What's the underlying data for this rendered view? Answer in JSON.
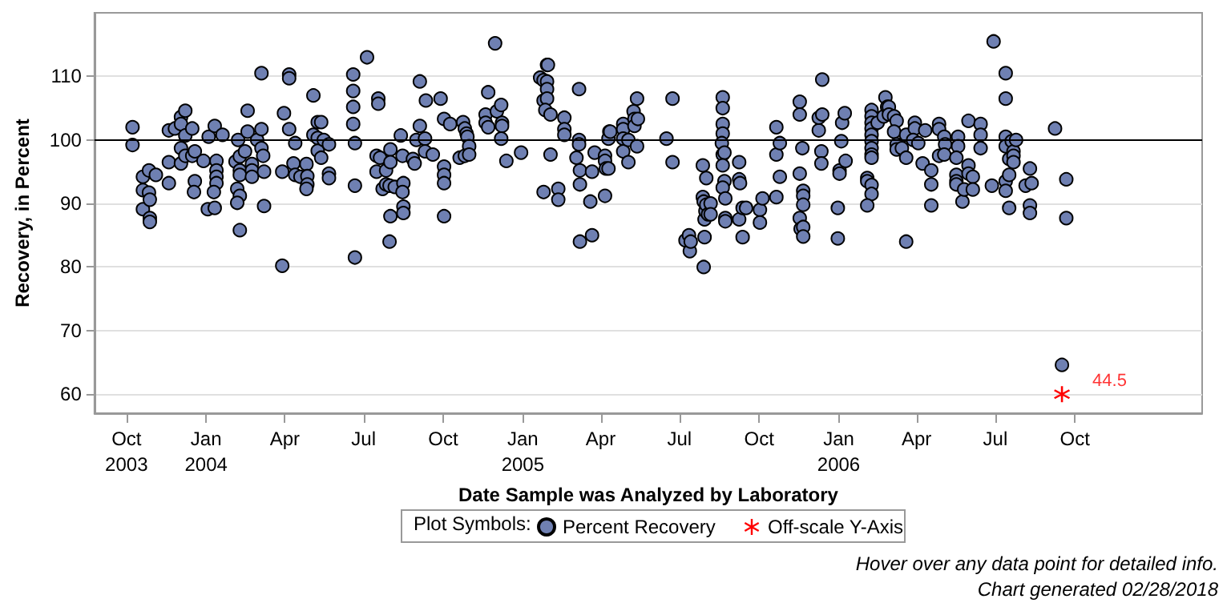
{
  "chart_data": {
    "type": "scatter",
    "xlabel": "Date Sample was Analyzed by Laboratory",
    "ylabel": "Recovery, in Percent",
    "legend_title": "Plot Symbols:",
    "legend": "bottom",
    "grid": "y",
    "marker": "circle",
    "xlim": [
      "2003-08-25",
      "2007-02-25"
    ],
    "xticks": [
      {
        "value": "2003-10-01",
        "label": "Oct\n2003"
      },
      {
        "value": "2004-01-01",
        "label": "Jan\n2004"
      },
      {
        "value": "2004-04-01",
        "label": "Apr"
      },
      {
        "value": "2004-07-01",
        "label": "Jul"
      },
      {
        "value": "2004-10-01",
        "label": "Oct"
      },
      {
        "value": "2005-01-01",
        "label": "Jan\n2005"
      },
      {
        "value": "2005-04-01",
        "label": "Apr"
      },
      {
        "value": "2005-07-01",
        "label": "Jul"
      },
      {
        "value": "2005-10-01",
        "label": "Oct"
      },
      {
        "value": "2006-01-01",
        "label": "Jan\n2006"
      },
      {
        "value": "2006-04-01",
        "label": "Apr"
      },
      {
        "value": "2006-07-01",
        "label": "Jul"
      },
      {
        "value": "2006-10-01",
        "label": "Oct"
      }
    ],
    "ylim": [
      57,
      120
    ],
    "yticks": [
      60,
      70,
      80,
      90,
      100,
      110
    ],
    "ref_lines": [
      {
        "axis": "y",
        "value": 100,
        "color": "#000000",
        "line_style": "solid"
      }
    ],
    "annotations": [
      {
        "text": "44.5",
        "x": "2006-09-16",
        "y": 60
      },
      "Hover over any data point for detailed info.",
      "Chart generated 02/28/2018"
    ],
    "series": [
      {
        "name": "Percent Recovery",
        "color": "#6f80b2",
        "x": [
          "2003-10-08",
          "2003-10-08",
          "2003-10-20",
          "2003-10-20",
          "2003-10-20",
          "2003-10-27",
          "2003-10-27",
          "2003-10-28",
          "2003-10-28",
          "2003-10-28",
          "2003-11-04",
          "2003-11-19",
          "2003-11-19",
          "2003-11-19",
          "2003-11-26",
          "2003-12-03",
          "2003-12-03",
          "2003-12-03",
          "2003-12-03",
          "2003-12-08",
          "2003-12-08",
          "2003-12-08",
          "2003-12-16",
          "2003-12-16",
          "2003-12-19",
          "2003-12-19",
          "2003-12-18",
          "2003-12-29",
          "2004-01-04",
          "2004-01-11",
          "2004-01-13",
          "2004-01-13",
          "2004-01-13",
          "2004-01-13",
          "2004-01-10",
          "2004-01-03",
          "2004-01-11",
          "2004-01-20",
          "2004-02-04",
          "2004-02-07",
          "2004-02-09",
          "2004-02-09",
          "2004-02-09",
          "2004-02-06",
          "2004-02-09",
          "2004-02-06",
          "2004-02-09",
          "2004-02-15",
          "2004-02-18",
          "2004-02-18",
          "2004-02-23",
          "2004-02-23",
          "2004-02-23",
          "2004-02-29",
          "2004-03-05",
          "2004-03-05",
          "2004-03-07",
          "2004-03-05",
          "2004-03-08",
          "2004-03-08",
          "2004-03-29",
          "2004-03-29",
          "2004-03-31",
          "2004-04-06",
          "2004-04-06",
          "2004-04-06",
          "2004-04-11",
          "2004-04-13",
          "2004-04-13",
          "2004-04-19",
          "2004-04-26",
          "2004-04-27",
          "2004-04-27",
          "2004-04-26",
          "2004-05-04",
          "2004-05-04",
          "2004-05-09",
          "2004-05-13",
          "2004-05-09",
          "2004-05-09",
          "2004-05-13",
          "2004-05-16",
          "2004-05-22",
          "2004-05-22",
          "2004-05-22",
          "2004-06-19",
          "2004-06-19",
          "2004-06-19",
          "2004-06-19",
          "2004-06-21",
          "2004-06-21",
          "2004-06-21",
          "2004-07-05",
          "2004-07-18",
          "2004-07-18",
          "2004-07-16",
          "2004-07-20",
          "2004-07-16",
          "2004-07-23",
          "2004-07-27",
          "2004-07-27",
          "2004-08-01",
          "2004-08-01",
          "2004-07-31",
          "2004-08-06",
          "2004-08-01",
          "2004-07-31",
          "2004-08-13",
          "2004-08-15",
          "2004-08-16",
          "2004-08-15",
          "2004-08-16",
          "2004-08-16",
          "2004-08-27",
          "2004-08-29",
          "2004-08-31",
          "2004-09-04",
          "2004-09-04",
          "2004-09-10",
          "2004-09-11",
          "2004-09-10",
          "2004-09-19",
          "2004-09-28",
          "2004-10-02",
          "2004-10-02",
          "2004-10-02",
          "2004-10-02",
          "2004-10-02",
          "2004-10-09",
          "2004-10-24",
          "2004-10-26",
          "2004-10-28",
          "2004-10-29",
          "2004-10-31",
          "2004-10-20",
          "2004-10-26",
          "2004-10-31",
          "2004-11-30",
          "2004-11-22",
          "2004-11-19",
          "2004-11-19",
          "2004-11-22",
          "2004-12-02",
          "2004-12-07",
          "2004-12-08",
          "2004-12-08",
          "2004-12-07",
          "2004-12-13",
          "2004-12-30",
          "2005-01-21",
          "2005-01-29",
          "2005-01-30",
          "2005-01-25",
          "2005-01-29",
          "2005-01-29",
          "2005-01-25",
          "2005-01-29",
          "2005-01-27",
          "2005-02-02",
          "2005-01-25",
          "2005-02-11",
          "2005-02-11",
          "2005-02-02",
          "2005-02-18",
          "2005-02-18",
          "2005-02-18",
          "2005-03-07",
          "2005-03-07",
          "2005-03-07",
          "2005-03-04",
          "2005-03-08",
          "2005-03-08",
          "2005-03-08",
          "2005-03-20",
          "2005-03-22",
          "2005-03-22",
          "2005-03-25",
          "2005-04-06",
          "2005-04-06",
          "2005-04-07",
          "2005-04-10",
          "2005-04-06",
          "2005-04-11",
          "2005-04-10",
          "2005-04-12",
          "2005-04-27",
          "2005-04-27",
          "2005-04-27",
          "2005-04-27",
          "2005-05-03",
          "2005-05-03",
          "2005-05-09",
          "2005-05-10",
          "2005-05-10",
          "2005-05-13",
          "2005-05-14",
          "2005-05-13",
          "2005-06-16",
          "2005-06-23",
          "2005-06-23",
          "2005-07-08",
          "2005-07-12",
          "2005-07-13",
          "2005-07-14",
          "2005-07-29",
          "2005-07-30",
          "2005-07-28",
          "2005-08-01",
          "2005-07-28",
          "2005-07-29",
          "2005-07-30",
          "2005-07-31",
          "2005-08-01",
          "2005-08-03",
          "2005-08-06",
          "2005-08-06",
          "2005-08-20",
          "2005-08-20",
          "2005-08-20",
          "2005-08-20",
          "2005-08-19",
          "2005-08-20",
          "2005-08-22",
          "2005-08-20",
          "2005-08-22",
          "2005-08-20",
          "2005-08-23",
          "2005-08-23",
          "2005-08-23",
          "2005-09-08",
          "2005-09-08",
          "2005-09-09",
          "2005-09-08",
          "2005-09-12",
          "2005-09-12",
          "2005-09-16",
          "2005-10-02",
          "2005-10-02",
          "2005-10-05",
          "2005-10-21",
          "2005-10-21",
          "2005-10-21",
          "2005-10-25",
          "2005-10-25",
          "2005-11-17",
          "2005-11-17",
          "2005-11-17",
          "2005-11-17",
          "2005-11-18",
          "2005-11-20",
          "2005-11-21",
          "2005-11-21",
          "2005-11-21",
          "2005-11-21",
          "2005-11-21",
          "2005-12-09",
          "2005-12-09",
          "2005-12-13",
          "2005-12-13",
          "2005-12-12",
          "2005-12-12",
          "2005-12-31",
          "2005-12-31",
          "2006-01-02",
          "2006-01-02",
          "2006-01-04",
          "2006-01-05",
          "2006-01-08",
          "2006-01-09",
          "2006-02-03",
          "2006-02-03",
          "2006-02-08",
          "2006-02-08",
          "2006-02-03",
          "2006-02-08",
          "2006-02-08",
          "2006-02-08",
          "2006-02-08",
          "2006-02-08",
          "2006-02-08",
          "2006-02-08",
          "2006-02-08",
          "2006-02-08",
          "2006-02-15",
          "2006-02-24",
          "2006-02-22",
          "2006-02-26",
          "2006-02-28",
          "2006-02-28",
          "2006-03-06",
          "2006-03-09",
          "2006-03-06",
          "2006-03-09",
          "2006-03-09",
          "2006-03-15",
          "2006-03-20",
          "2006-03-20",
          "2006-03-20",
          "2006-03-30",
          "2006-03-30",
          "2006-03-28",
          "2006-04-03",
          "2006-04-08",
          "2006-04-11",
          "2006-04-18",
          "2006-04-18",
          "2006-04-18",
          "2006-04-27",
          "2006-04-27",
          "2006-04-27",
          "2006-05-03",
          "2006-05-04",
          "2006-05-03",
          "2006-05-19",
          "2006-05-19",
          "2006-05-17",
          "2006-05-17",
          "2006-05-17",
          "2006-05-17",
          "2006-05-24",
          "2006-05-26",
          "2006-05-31",
          "2006-05-31",
          "2006-05-31",
          "2006-06-05",
          "2006-06-05",
          "2006-06-14",
          "2006-06-14",
          "2006-06-14",
          "2006-06-27",
          "2006-06-29",
          "2006-07-13",
          "2006-07-13",
          "2006-07-13",
          "2006-07-13",
          "2006-07-13",
          "2006-07-13",
          "2006-07-17",
          "2006-07-17",
          "2006-07-17",
          "2006-07-20",
          "2006-07-22",
          "2006-07-22",
          "2006-07-22",
          "2006-07-25",
          "2006-08-05",
          "2006-08-10",
          "2006-08-12",
          "2006-08-10",
          "2006-08-10",
          "2006-09-08",
          "2006-09-21",
          "2006-09-21",
          "2006-09-16"
        ],
        "values": [
          102.0,
          99.2,
          94.2,
          92.1,
          89.1,
          95.2,
          91.7,
          90.6,
          87.7,
          87.1,
          94.5,
          101.5,
          96.5,
          93.2,
          101.8,
          103.6,
          102.5,
          98.7,
          96.3,
          104.6,
          97.5,
          100.7,
          101.8,
          97.5,
          98.2,
          93.5,
          91.8,
          96.7,
          100.5,
          102.2,
          96.7,
          95.2,
          94.2,
          93.2,
          91.8,
          89.1,
          89.3,
          100.8,
          96.6,
          100,
          97.4,
          95.2,
          94.5,
          92.3,
          91.2,
          90.1,
          85.8,
          98.2,
          104.6,
          101.3,
          96.2,
          95.2,
          94.2,
          100,
          101.7,
          98.7,
          97.5,
          110.5,
          95.0,
          89.6,
          95.0,
          80.2,
          104.2,
          110.3,
          109.7,
          101.7,
          96.3,
          99.5,
          94.5,
          94.2,
          96.2,
          94.3,
          93.0,
          92.3,
          107.0,
          100.8,
          102.8,
          102.8,
          100.3,
          98.3,
          97.2,
          100,
          99.3,
          94.7,
          94.0,
          110.3,
          107.7,
          105.2,
          102.5,
          99.5,
          92.8,
          81.5,
          113.0,
          106.5,
          105.7,
          97.5,
          97.2,
          95.0,
          92.3,
          95.2,
          93.0,
          98.5,
          96.5,
          92.8,
          92.6,
          88.0,
          84.0,
          100.7,
          97.5,
          93.2,
          91.8,
          89.5,
          88.5,
          97.0,
          96.3,
          100,
          109.2,
          102.2,
          100.2,
          106.2,
          98.2,
          97.7,
          106.5,
          103.3,
          95.8,
          94.5,
          93.2,
          88.0,
          102.5,
          102.8,
          101.8,
          101.0,
          100.5,
          99.0,
          97.2,
          97.5,
          97.7,
          115.2,
          107.5,
          104.0,
          102.7,
          102.0,
          104.5,
          105.5,
          102.7,
          102.2,
          100.2,
          96.7,
          98.0,
          109.8,
          111.8,
          111.8,
          109.4,
          109.2,
          108.0,
          106.2,
          106.5,
          104.7,
          104.0,
          91.8,
          92.3,
          90.6,
          97.7,
          103.5,
          101.7,
          100.8,
          108.0,
          100,
          99.3,
          97.2,
          95.2,
          93.0,
          84.0,
          90.3,
          85.0,
          95.0,
          98.0,
          97.5,
          96.7,
          95.5,
          95.5,
          91.2,
          101.3,
          100.2,
          101.3,
          102.5,
          101.7,
          100.2,
          98.2,
          100,
          96.5,
          104.5,
          103.3,
          102.2,
          106.5,
          103.3,
          99.0,
          100.2,
          106.5,
          96.5,
          84.2,
          85.0,
          82.5,
          84.0,
          80.0,
          84.7,
          96.0,
          94.0,
          91.0,
          90.3,
          87.5,
          88.8,
          89.8,
          88.3,
          90.0,
          88.3,
          106.7,
          105.0,
          102.5,
          101.0,
          99.5,
          97.7,
          98.0,
          96.0,
          93.5,
          92.5,
          90.8,
          87.7,
          87.2,
          96.5,
          93.8,
          93.2,
          87.5,
          89.3,
          84.7,
          89.3,
          89.0,
          87.0,
          90.8,
          102.0,
          97.7,
          91.0,
          99.5,
          94.2,
          106.0,
          104.0,
          94.7,
          87.7,
          86.0,
          98.7,
          92.0,
          91.2,
          89.8,
          86.3,
          84.8,
          101.5,
          103.5,
          104.0,
          109.5,
          98.2,
          96.3,
          89.3,
          84.5,
          95.2,
          94.7,
          99.8,
          102.7,
          104.2,
          96.7,
          94.0,
          93.5,
          92.9,
          91.5,
          89.7,
          104.7,
          103.7,
          102.7,
          101.8,
          100.8,
          99.8,
          98.7,
          97.7,
          97.2,
          102.7,
          106.7,
          103.7,
          105.2,
          105.2,
          104.0,
          103.7,
          103.0,
          101.3,
          99.3,
          98.5,
          98.7,
          100.8,
          97.2,
          84.0,
          102.7,
          101.8,
          100,
          99.5,
          96.3,
          101.5,
          95.2,
          93.0,
          89.7,
          102.5,
          101.7,
          97.5,
          100.5,
          99.3,
          97.7,
          100.5,
          99.0,
          97.2,
          94.5,
          93.5,
          93.0,
          90.3,
          92.2,
          103.0,
          96.0,
          94.7,
          94.2,
          92.2,
          102.5,
          100.8,
          98.7,
          92.8,
          115.5,
          110.5,
          106.5,
          100.5,
          99.0,
          93.5,
          92.0,
          97.0,
          94.5,
          89.3,
          99.8,
          98.2,
          97.5,
          96.5,
          100,
          92.8,
          95.5,
          93.2,
          89.7,
          88.5,
          101.8,
          93.8,
          87.7,
          64.6
        ]
      },
      {
        "name": "Off-scale Y-Axis",
        "color": "#ff0000",
        "marker": "cross",
        "x": [
          "2006-09-16"
        ],
        "values": [
          60
        ]
      }
    ]
  }
}
